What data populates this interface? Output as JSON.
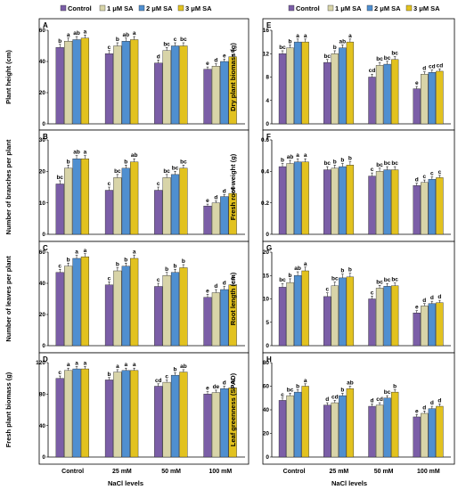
{
  "chart_data": {
    "legend": [
      {
        "name": "Control",
        "color": "#7b5ea7"
      },
      {
        "name": "1 μM SA",
        "color": "#d8d4a8"
      },
      {
        "name": "2 μM SA",
        "color": "#4f8fd0"
      },
      {
        "name": "3 μM SA",
        "color": "#e2c21f"
      }
    ],
    "categories": [
      "Control",
      "25 mM",
      "50 mM",
      "100 mM"
    ],
    "xlabel": "NaCl levels",
    "panels": [
      {
        "id": "A",
        "type": "bar",
        "ylabel": "Plant height (cm)",
        "ylim": [
          0,
          60
        ],
        "yticks": [
          0,
          20,
          40,
          60
        ],
        "values": [
          [
            49,
            53,
            54,
            55
          ],
          [
            45,
            50,
            53,
            54
          ],
          [
            39,
            47,
            50,
            50
          ],
          [
            35,
            37,
            40,
            43
          ]
        ],
        "errors": [
          [
            2,
            2,
            2,
            2
          ],
          [
            2,
            2,
            2,
            2
          ],
          [
            2,
            2,
            2,
            2
          ],
          [
            1.5,
            1.5,
            1.5,
            1.5
          ]
        ],
        "letters": [
          [
            "b",
            "a",
            "ab",
            "a"
          ],
          [
            "c",
            "b",
            "ab",
            "a"
          ],
          [
            "d",
            "bc",
            "c",
            "bc"
          ],
          [
            "e",
            "d",
            "e",
            "d"
          ]
        ]
      },
      {
        "id": "B",
        "type": "bar",
        "ylabel": "Number of branches per plant",
        "ylim": [
          0,
          30
        ],
        "yticks": [
          0,
          10,
          20,
          30
        ],
        "values": [
          [
            16,
            21,
            24,
            24
          ],
          [
            14,
            18,
            21,
            23
          ],
          [
            14,
            18,
            19,
            21
          ],
          [
            9,
            10,
            12,
            13
          ]
        ],
        "errors": [
          [
            1,
            1,
            1,
            1
          ],
          [
            1,
            1,
            1,
            1
          ],
          [
            1,
            1,
            1,
            1
          ],
          [
            0.6,
            0.6,
            0.6,
            0.6
          ]
        ],
        "letters": [
          [
            "bc",
            "b",
            "ab",
            "a"
          ],
          [
            "c",
            "bc",
            "b",
            "ab"
          ],
          [
            "c",
            "bc",
            "bc",
            "bc"
          ],
          [
            "e",
            "d",
            "d",
            "d"
          ]
        ]
      },
      {
        "id": "C",
        "type": "bar",
        "ylabel": "Number of leaves per plant",
        "ylim": [
          0,
          60
        ],
        "yticks": [
          0,
          20,
          40,
          60
        ],
        "values": [
          [
            47,
            51,
            56,
            57
          ],
          [
            39,
            48,
            51,
            56
          ],
          [
            38,
            45,
            47,
            50
          ],
          [
            31,
            34,
            36,
            39
          ]
        ],
        "errors": [
          [
            2,
            2,
            2,
            2
          ],
          [
            2,
            2,
            2,
            2
          ],
          [
            2,
            2,
            2,
            2
          ],
          [
            2,
            2,
            2,
            2
          ]
        ],
        "letters": [
          [
            "c",
            "b",
            "a",
            "a"
          ],
          [
            "c",
            "b",
            "b",
            "a"
          ],
          [
            "c",
            "b",
            "b",
            "b"
          ],
          [
            "e",
            "d",
            "d",
            "d"
          ]
        ]
      },
      {
        "id": "D",
        "type": "bar",
        "ylabel": "Fresh plant biomass (g)",
        "ylim": [
          0,
          120
        ],
        "yticks": [
          0,
          40,
          80,
          120
        ],
        "values": [
          [
            100,
            110,
            112,
            112
          ],
          [
            98,
            108,
            110,
            110
          ],
          [
            90,
            95,
            104,
            108
          ],
          [
            80,
            82,
            87,
            88
          ]
        ],
        "errors": [
          [
            3,
            3,
            3,
            3
          ],
          [
            3,
            3,
            3,
            3
          ],
          [
            3,
            3,
            3,
            3
          ],
          [
            3,
            3,
            3,
            3
          ]
        ],
        "letters": [
          [
            "c",
            "a",
            "a",
            "a"
          ],
          [
            "b",
            "a",
            "a",
            "a"
          ],
          [
            "cd",
            "c",
            "b",
            "ab"
          ],
          [
            "e",
            "de",
            "d",
            "d"
          ]
        ]
      },
      {
        "id": "E",
        "type": "bar",
        "ylabel": "Dry plant biomass (g)",
        "ylim": [
          0,
          16
        ],
        "yticks": [
          0,
          4,
          8,
          12,
          16
        ],
        "values": [
          [
            12,
            13,
            14,
            14
          ],
          [
            10.5,
            12,
            13,
            14
          ],
          [
            8,
            10,
            10.2,
            11
          ],
          [
            6,
            8.5,
            8.8,
            9
          ]
        ],
        "errors": [
          [
            0.5,
            0.5,
            0.5,
            0.5
          ],
          [
            0.5,
            0.5,
            0.5,
            0.5
          ],
          [
            0.5,
            0.5,
            0.5,
            0.5
          ],
          [
            0.4,
            0.4,
            0.4,
            0.4
          ]
        ],
        "letters": [
          [
            "bc",
            "b",
            "a",
            "a"
          ],
          [
            "bc",
            "b",
            "ab",
            "a"
          ],
          [
            "cd",
            "bc",
            "bc",
            "bc"
          ],
          [
            "e",
            "d",
            "cd",
            "cd"
          ]
        ]
      },
      {
        "id": "F",
        "type": "bar",
        "ylabel": "Fresh root weight (g)",
        "ylim": [
          0,
          0.6
        ],
        "yticks": [
          0,
          0.2,
          0.4,
          0.6
        ],
        "values": [
          [
            0.43,
            0.45,
            0.46,
            0.46
          ],
          [
            0.41,
            0.42,
            0.43,
            0.44
          ],
          [
            0.37,
            0.4,
            0.41,
            0.41
          ],
          [
            0.31,
            0.33,
            0.35,
            0.36
          ]
        ],
        "errors": [
          [
            0.02,
            0.02,
            0.02,
            0.02
          ],
          [
            0.02,
            0.02,
            0.02,
            0.02
          ],
          [
            0.02,
            0.02,
            0.02,
            0.02
          ],
          [
            0.015,
            0.015,
            0.015,
            0.015
          ]
        ],
        "letters": [
          [
            "b",
            "ab",
            "a",
            "a"
          ],
          [
            "bc",
            "b",
            "b",
            "b"
          ],
          [
            "c",
            "bc",
            "bc",
            "bc"
          ],
          [
            "d",
            "c",
            "c",
            "c"
          ]
        ]
      },
      {
        "id": "G",
        "type": "bar",
        "ylabel": "Root length (cm)",
        "ylim": [
          0,
          20
        ],
        "yticks": [
          0,
          5,
          10,
          15,
          20
        ],
        "values": [
          [
            12.5,
            13.5,
            15,
            16
          ],
          [
            10.5,
            12.8,
            14.5,
            14.7
          ],
          [
            10,
            12.3,
            12.7,
            12.8
          ],
          [
            7,
            8.5,
            9,
            9.2
          ]
        ],
        "errors": [
          [
            0.8,
            0.8,
            0.8,
            0.8
          ],
          [
            0.8,
            0.8,
            0.8,
            0.8
          ],
          [
            0.6,
            0.6,
            0.6,
            0.6
          ],
          [
            0.5,
            0.5,
            0.5,
            0.5
          ]
        ],
        "letters": [
          [
            "bc",
            "b",
            "ab",
            "a"
          ],
          [
            "c",
            "bc",
            "b",
            "b"
          ],
          [
            "c",
            "bc",
            "bc",
            "bc"
          ],
          [
            "e",
            "d",
            "d",
            "d"
          ]
        ]
      },
      {
        "id": "H",
        "type": "bar",
        "ylabel": "Leaf greenness (SPAD)",
        "ylim": [
          0,
          80
        ],
        "yticks": [
          0,
          20,
          40,
          60,
          80
        ],
        "values": [
          [
            48,
            52,
            55,
            60
          ],
          [
            44,
            46,
            52,
            58
          ],
          [
            43,
            44,
            50,
            55
          ],
          [
            34,
            37,
            41,
            43
          ]
        ],
        "errors": [
          [
            2,
            2,
            2,
            2
          ],
          [
            2,
            2,
            2,
            2
          ],
          [
            2,
            2,
            2,
            2
          ],
          [
            2,
            2,
            2,
            2
          ]
        ],
        "letters": [
          [
            "c",
            "bc",
            "b",
            "a"
          ],
          [
            "d",
            "cd",
            "b",
            "ab"
          ],
          [
            "d",
            "cd",
            "bc",
            "b"
          ],
          [
            "e",
            "d",
            "d",
            "d"
          ]
        ]
      }
    ]
  }
}
